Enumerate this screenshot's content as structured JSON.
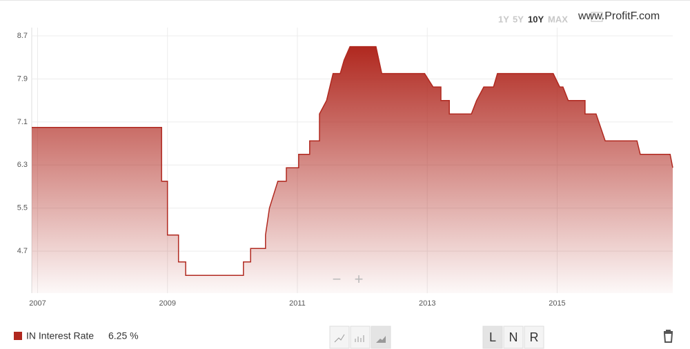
{
  "chart_data": {
    "type": "area",
    "x": [
      2006.91,
      2008.91,
      2008.91,
      2009.0,
      2009.0,
      2009.17,
      2009.17,
      2009.28,
      2009.28,
      2010.17,
      2010.17,
      2010.28,
      2010.28,
      2010.51,
      2010.51,
      2010.57,
      2010.7,
      2010.83,
      2010.83,
      2011.02,
      2011.02,
      2011.19,
      2011.19,
      2011.34,
      2011.34,
      2011.45,
      2011.55,
      2011.66,
      2011.72,
      2011.81,
      2012.21,
      2012.3,
      2012.96,
      2013.09,
      2013.21,
      2013.21,
      2013.34,
      2013.34,
      2013.68,
      2013.76,
      2013.87,
      2014.02,
      2014.08,
      2014.94,
      2015.04,
      2015.09,
      2015.17,
      2015.43,
      2015.43,
      2015.6,
      2015.74,
      2016.23,
      2016.28,
      2016.74,
      2016.78
    ],
    "series": [
      {
        "name": "IN Interest Rate",
        "color": "#b0281f",
        "values": [
          7.0,
          7.0,
          6.0,
          6.0,
          5.0,
          5.0,
          4.5,
          4.5,
          4.25,
          4.25,
          4.5,
          4.5,
          4.75,
          4.75,
          5.0,
          5.5,
          6.0,
          6.0,
          6.25,
          6.25,
          6.5,
          6.5,
          6.75,
          6.75,
          7.25,
          7.5,
          8.0,
          8.0,
          8.25,
          8.5,
          8.5,
          8.0,
          8.0,
          7.75,
          7.75,
          7.5,
          7.5,
          7.25,
          7.25,
          7.5,
          7.75,
          7.75,
          8.0,
          8.0,
          7.75,
          7.75,
          7.5,
          7.5,
          7.25,
          7.25,
          6.75,
          6.75,
          6.5,
          6.5,
          6.25
        ]
      }
    ],
    "xlim": [
      2006.91,
      2016.78
    ],
    "xticks": [
      2007,
      2009,
      2011,
      2013,
      2015
    ],
    "ylim": [
      3.92,
      8.79
    ],
    "yticks": [
      4.7,
      5.5,
      6.3,
      7.1,
      7.9,
      8.7
    ],
    "grid": true,
    "current_value_label": "6.25 %"
  },
  "ui": {
    "range_buttons": [
      "1Y",
      "5Y",
      "10Y",
      "MAX"
    ],
    "watermark": "www.ProfitF.com",
    "zoom_out": "−",
    "zoom_in": "+",
    "scale_buttons": [
      "L",
      "N",
      "R"
    ]
  }
}
